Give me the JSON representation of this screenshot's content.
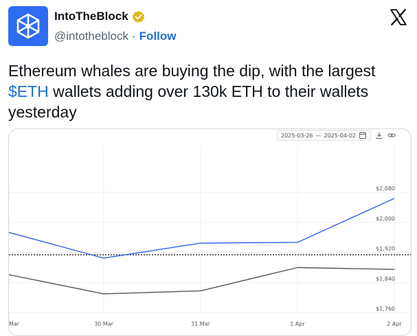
{
  "account": {
    "display_name": "IntoTheBlock",
    "handle": "@intotheblock",
    "separator": "·",
    "follow_label": "Follow"
  },
  "tweet": {
    "text_before": "Ethereum whales are buying the dip, with the largest ",
    "cashtag": "$ETH",
    "text_after": " wallets adding over 130k ETH to their wallets yesterday"
  },
  "chart_toolbar": {
    "date_start": "2025-03-26",
    "date_dash": "—",
    "date_end": "2025-04-02"
  },
  "colors": {
    "brand_blue": "#2f6cf4",
    "link_blue": "#1d6fd1",
    "whale_line": "#3060f0",
    "price_line": "#555555"
  },
  "chart_data": {
    "type": "line",
    "x": [
      "Mar",
      "30 Mar",
      "31 Mar",
      "1 Apr",
      "2 Apr"
    ],
    "x_index": [
      -1,
      0,
      1,
      2,
      3
    ],
    "ylim": [
      1760,
      2120
    ],
    "y_ticks": [
      "$1,760",
      "$1,840",
      "$1,920",
      "$2,000",
      "$2,080"
    ],
    "y_tick_values": [
      1760,
      1840,
      1920,
      2000,
      2080
    ],
    "reference_line": 1914,
    "series": [
      {
        "color": "#3060f0",
        "values": [
          1975,
          1905,
          1945,
          1947,
          2064
        ]
      },
      {
        "color": "#555555",
        "values": [
          1862,
          1810,
          1818,
          1880,
          1875
        ]
      }
    ],
    "grid": true
  }
}
